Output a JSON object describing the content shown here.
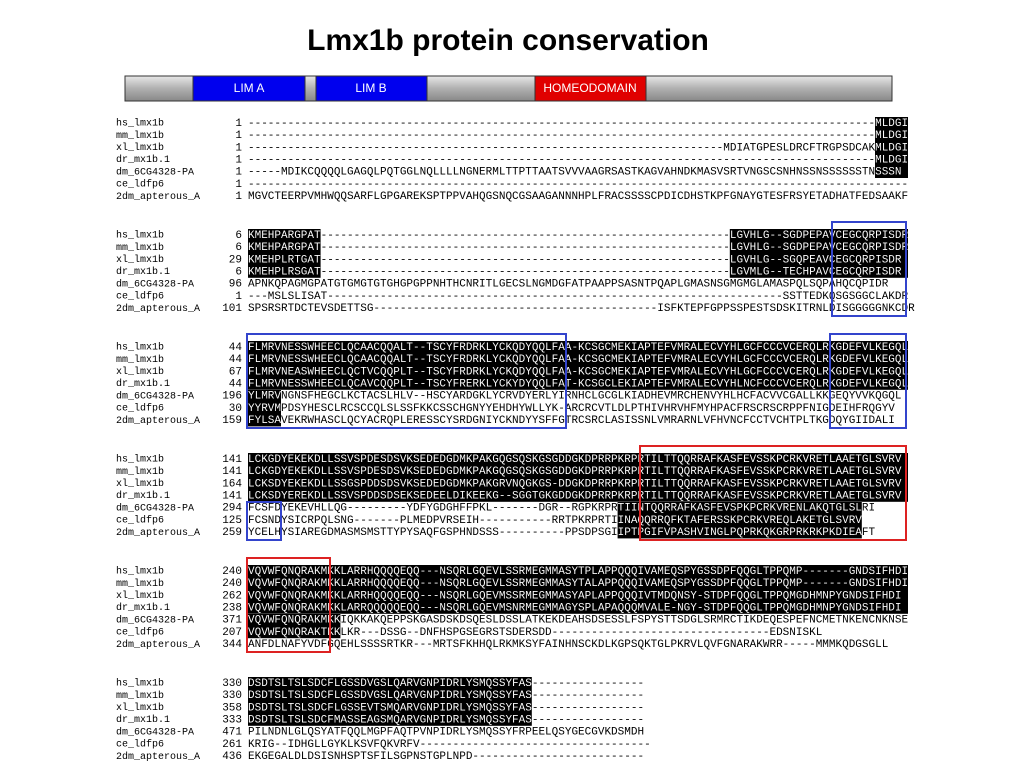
{
  "header": {
    "title": "Lmx1b protein conservation"
  },
  "domain_bar": {
    "domains": [
      "LIM A",
      "LIM B",
      "HOMEODOMAIN"
    ]
  },
  "alignment": {
    "blocks": [
      {
        "rows": [
          {
            "name": "hs_lmx1b",
            "start": 1,
            "sequence": "-----------------------------------------------------------------------------------------------MLDGI"
          },
          {
            "name": "mm_lmx1b",
            "start": 1,
            "sequence": "-----------------------------------------------------------------------------------------------MLDGI"
          },
          {
            "name": "xl_lmx1b",
            "start": 1,
            "sequence": "------------------------------------------------------------------------MDIATGPESLDRCFTRGPSDCAKMLDGI"
          },
          {
            "name": "dr_mx1b.1",
            "start": 1,
            "sequence": "-----------------------------------------------------------------------------------------------MLDGI"
          },
          {
            "name": "dm_6CG4328-PA",
            "start": 1,
            "sequence": "-----MDIKCQQQQLGAGQLPQTGGLNQLLLLNGNERMLTTPTTAATSVVVAAGRSASTKAGVAHNDKMASVSRTVNGSCSNHNSSNSSSSSSTNSSSN"
          },
          {
            "name": "ce_ldfp6",
            "start": 1,
            "sequence": "----------------------------------------------------------------------------------------------------"
          },
          {
            "name": "2dm_apterous_A",
            "start": 1,
            "sequence": "MGVCTEERPVMHWQQSARFLGPGAREKSPTPPVAHQGSNQCGSAAGANNNHPLFRACSSSSCPDICDHSTKPFGNAYGTESFRSYETADHATFEDSAAKF"
          }
        ]
      },
      {
        "rows": [
          {
            "name": "hs_lmx1b",
            "start": 6,
            "sequence": "KMEHPARGPAT--------------------------------------------------------------LGVHLG--SGDPEPAVCEGCQRPISDR"
          },
          {
            "name": "mm_lmx1b",
            "start": 6,
            "sequence": "KMEHPARGPAT--------------------------------------------------------------LGVHLG--SGDPEPAVCEGCQRPISDR"
          },
          {
            "name": "xl_lmx1b",
            "start": 29,
            "sequence": "KMEHPLRTGAT--------------------------------------------------------------LGVHLG--SGQPEAVCEGCQRPISDR"
          },
          {
            "name": "dr_mx1b.1",
            "start": 6,
            "sequence": "KMEHPLRSGAT--------------------------------------------------------------LGVMLG--TECHPAVCEGCQRPISDR"
          },
          {
            "name": "dm_6CG4328-PA",
            "start": 96,
            "sequence": "APNKQPAGMGPATGTGMGTGTGHGPGPPNHTHCNRITLGECSLNGMDGFATPAAPPSASNTPQAPLGMASNSGMGMGLAMASPQLSQPAHQCQPIDR"
          },
          {
            "name": "ce_ldfp6",
            "start": 1,
            "sequence": "---MSLSLISAT---------------------------------------------------------------------SSTTEDKQSGSGGCLAKDR"
          },
          {
            "name": "2dm_apterous_A",
            "start": 101,
            "sequence": "SPSRSRTDCTEVSDETTSG-------------------------------------------ISFKTEPFGPPSSPESTSDSKITRNLDISGGGGGNKCDR"
          }
        ]
      },
      {
        "rows": [
          {
            "name": "hs_lmx1b",
            "start": 44,
            "sequence": "FLMRVNESSWHEECLQCAACQQALT--TSCYFRDRKLYCKQDYQQLFAA-KCSGCMEKIAPTEFVMRALECVYHLGCFCCCVCERQLRKGDEFVLKEGQL"
          },
          {
            "name": "mm_lmx1b",
            "start": 44,
            "sequence": "FLMRVNESSWHEECLQCAACQQALT--TSCYFRDRKLYCKQDYQQLFAA-KCSGCMEKIAPTEFVMRALECVYHLGCFCCCVCERQLRKGDEFVLKEGQL"
          },
          {
            "name": "xl_lmx1b",
            "start": 67,
            "sequence": "FLMRVNEASWHEECLQCTVCQQPLT--TSCYFRDRKLYCKQDYQQLFAA-KCSGCMEKIAPTEFVMRALECVYHLGCFCCCVCERQLRKGDEFVLKEGQL"
          },
          {
            "name": "dr_mx1b.1",
            "start": 44,
            "sequence": "FLMRVNESSWHEECLQCAVCQQPLT--TSCYFRERKLYCKYDYQQLFAT-KCSGCLEKIAPTEFVMRALECVYHLNCFCCCVCERQLRKGDEFVLKEGQL"
          },
          {
            "name": "dm_6CG4328-PA",
            "start": 196,
            "sequence": "YLMRVNGNSFHEGCLKCTACSLHLV--HSCYARDGKLYCRVDYERLYIRNHCLGCGLKIADHEVMRCHENVYHLHCFACVVCGALLKKGEQYVVKQGQL"
          },
          {
            "name": "ce_ldfp6",
            "start": 30,
            "sequence": "YYRVMPDSYHESCLRCSCCQLSLSSFKKCSSCHGNYYEHDHYWLLYK-ARCRCVTLDLPTHIVHRVHFMYHPACFRSCRSCRPPFNIGDEIHFRQGYV"
          },
          {
            "name": "2dm_apterous_A",
            "start": 159,
            "sequence": "FYLSAVEKRWHASCLQCYACRQPLERESSCYSRDGNIYCKNDYYSFFGTRCSRCLASISSNLVMRARNLVFHVNCFCCTVCHTPLTKGDQYGIIDALI"
          }
        ]
      },
      {
        "rows": [
          {
            "name": "hs_lmx1b",
            "start": 141,
            "sequence": "LCKGDYEKEKDLLSSVSPDESDSVKSEDEDGDMKPAKGQGSQSKGSGDDGKDPRRPKRPRTILTTQQRRAFKASFEVSSKPCRKVRETLAAETGLSVRV"
          },
          {
            "name": "mm_lmx1b",
            "start": 141,
            "sequence": "LCKGDYEKEKDLLSSVSPDESDSVKSEDEDGDMKPAKGQGSQSKGSGDDGKDPRRPKRPRTILTTQQRRAFKASFEVSSKPCRKVRETLAAETGLSVRV"
          },
          {
            "name": "xl_lmx1b",
            "start": 164,
            "sequence": "LCKSDYEKEKDLLSSGSPDDSDSVKSEDEDGDMKPAKGRVNQGKGS-DDGKDPRRPKRPRTILTTQQRRAFKASFEVSSKPCRKVRETLAAETGLSVRV"
          },
          {
            "name": "dr_mx1b.1",
            "start": 141,
            "sequence": "LCKSDYEREKDLLSSVSPDDSDSEKSEDEELDIKEEKG--SGGTGKGDDGKDPRRPKRPRTILTTQQRRAFKASFEVSSKPCRKVRETLAAETGLSVRV"
          },
          {
            "name": "dm_6CG4328-PA",
            "start": 294,
            "sequence": "FCSFDYEKEVHLLQG---------YDFYGDGHFFPKL-------DGR--RGPKRPRTIINTQQRRAFKASFEVSPKPCRKVRENLAKQTGLSLRI"
          },
          {
            "name": "ce_ldfp6",
            "start": 125,
            "sequence": "FCSNDYSICRPQLSNG-------PLMEDPVRSEIH-----------RRTPKRPRTIINAQQRRQFKTAFERSSKPCRKVREQLAKETGLSVRV"
          },
          {
            "name": "2dm_apterous_A",
            "start": 259,
            "sequence": "YCELHYSIAREGDMASMSMSTTYPYSAQFGSPHNDSSS----------PPSDPSGIIPTPGIFVPASHVINGLPQPRKQKGRPRKRKPKDIEAFT"
          }
        ]
      },
      {
        "rows": [
          {
            "name": "hs_lmx1b",
            "start": 240,
            "sequence": "VQVWFQNQRAKMKKLARRHQQQQEQQ---NSQRLGQEVLSSRMEGMMASYTPLAPPQQQIVAMEQSPYGSSDPFQQGLTPPQMP-------GNDSIFHDI"
          },
          {
            "name": "mm_lmx1b",
            "start": 240,
            "sequence": "VQVWFQNQRAKMKKLARRHQQQQEQQ---NSQRLGQEVLSSRMEGMMASYTALAPPQQQIVAMEQSPYGSSDPFQQGLTPPQMP-------GNDSIFHDI"
          },
          {
            "name": "xl_lmx1b",
            "start": 262,
            "sequence": "VQVWFQNQRAKMKKLARRHQQQQEQQ---NSQRLGQEVMSSRMEGMMASYAPLAPPQQQIVTMDQNSY-STDPFQQGLTPPQMGDHMNPYGNDSIFHDI"
          },
          {
            "name": "dr_mx1b.1",
            "start": 238,
            "sequence": "VQVWFQNQRAKMKKLARRQQQQQEQQ---NSQRLGQEVMSNRMEGMMAGYSPLAPAQQQMVALE-NGY-STDPFQQGLTPPQMGDHMNPYGNDSIFHDI"
          },
          {
            "name": "dm_6CG4328-PA",
            "start": 371,
            "sequence": "VQVWFQNQRAKMKKIQKKAKQEPPSKGASDSKDSQESLDSSLATKEKDEAHSDSESSLFSPYSTTSDGLSRMRCTIKDEQESPEFNCMETNKENCNKNSE"
          },
          {
            "name": "ce_ldfp6",
            "start": 207,
            "sequence": "VQVWFQNQRAKTKKLKR---DSSG--DNFHSPGSEGRSTSDERSDD---------------------------------EDSNISKL"
          },
          {
            "name": "2dm_apterous_A",
            "start": 344,
            "sequence": "ANFDLNAFYVDFGQEHLSSSSRTKR---MRTSFKHHQLRKMKSYFAINHNSCKDLKGPSQKTGLPKRVLQVFGNARAKWRR-----MMMKQDGSGLL"
          }
        ]
      },
      {
        "rows": [
          {
            "name": "hs_lmx1b",
            "start": 330,
            "sequence": "DSDTSLTSLSDCFLGSSDVGSLQARVGNPIDRLYSMQSSYFAS-----------------"
          },
          {
            "name": "mm_lmx1b",
            "start": 330,
            "sequence": "DSDTSLTSLSDCFLGSSDVGSLQARVGNPIDRLYSMQSSYFAS-----------------"
          },
          {
            "name": "xl_lmx1b",
            "start": 358,
            "sequence": "DSDTSLTSLSDCFLGSSEVTSMQARVGNPIDRLYSMQSSYFAS-----------------"
          },
          {
            "name": "dr_mx1b.1",
            "start": 333,
            "sequence": "DSDTSLTSLSDCFMASSEAGSMQARVGNPIDRLYSMQSSYFAS-----------------"
          },
          {
            "name": "dm_6CG4328-PA",
            "start": 471,
            "sequence": "PILNDNLGLQSYATFQQLMGPFAQTPVNPIDRLYSMQSSYFRPEELQSYGECGVKDSMDH"
          },
          {
            "name": "ce_ldfp6",
            "start": 261,
            "sequence": "KRIG--IDHGLLGYKLKSVFQKVRFV-----------------------------------"
          },
          {
            "name": "2dm_apterous_A",
            "start": 436,
            "sequence": "EKGEGALDLDSISNHSPTSFILSGPNSTGPLNPD--------------------------"
          }
        ]
      }
    ]
  }
}
